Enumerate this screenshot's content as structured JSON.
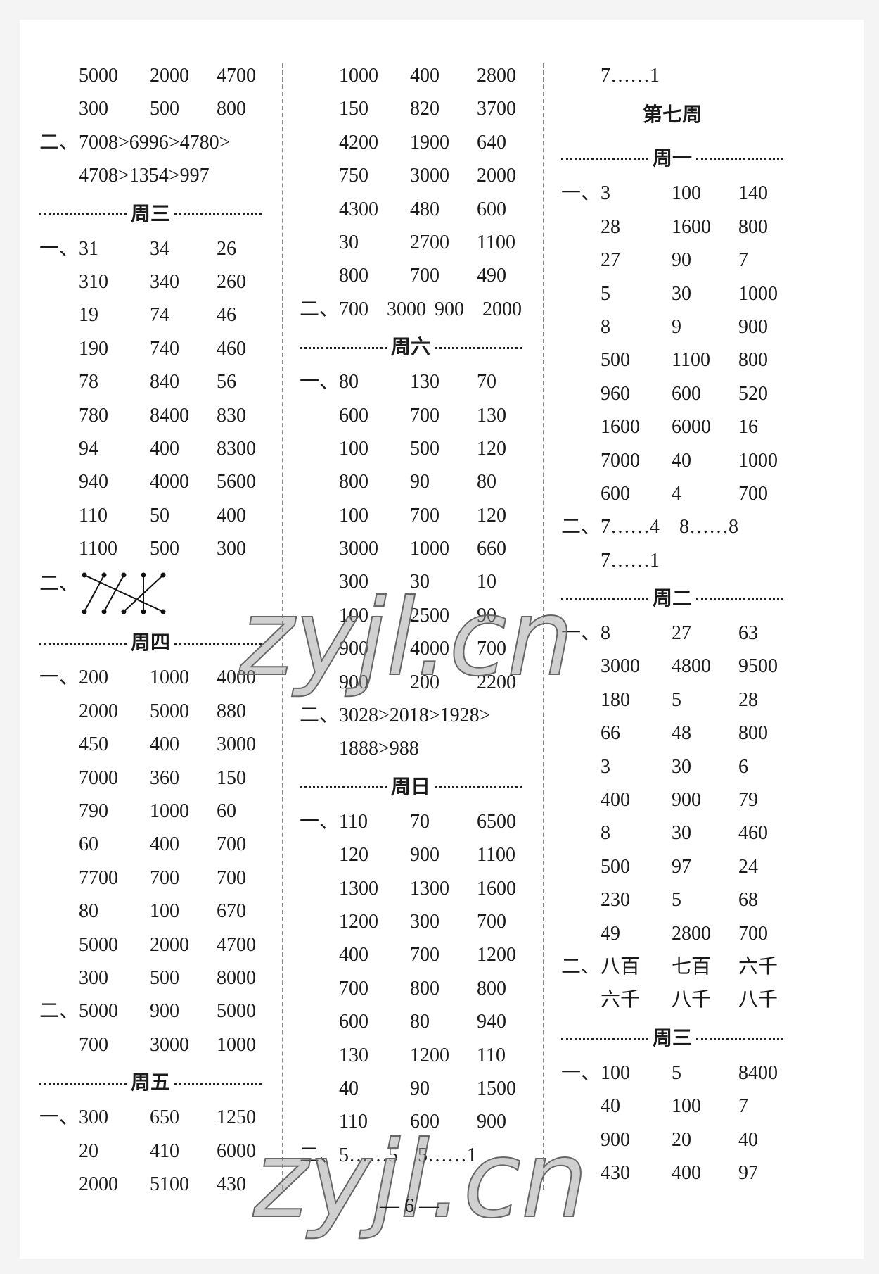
{
  "columns": [
    [
      {
        "type": "row",
        "prefix": "",
        "values": [
          "5000",
          "2000",
          "4700"
        ]
      },
      {
        "type": "row",
        "prefix": "",
        "values": [
          "300",
          "500",
          "800"
        ]
      },
      {
        "type": "text",
        "prefix": "二、",
        "text": "7008>6996>4780>"
      },
      {
        "type": "text",
        "prefix": "",
        "text": "4708>1354>997"
      },
      {
        "type": "heading",
        "label": "周三"
      },
      {
        "type": "row",
        "prefix": "一、",
        "values": [
          "31",
          "34",
          "26"
        ]
      },
      {
        "type": "row",
        "prefix": "",
        "values": [
          "310",
          "340",
          "260"
        ]
      },
      {
        "type": "row",
        "prefix": "",
        "values": [
          "19",
          "74",
          "46"
        ]
      },
      {
        "type": "row",
        "prefix": "",
        "values": [
          "190",
          "740",
          "460"
        ]
      },
      {
        "type": "row",
        "prefix": "",
        "values": [
          "78",
          "840",
          "56"
        ]
      },
      {
        "type": "row",
        "prefix": "",
        "values": [
          "780",
          "8400",
          "830"
        ]
      },
      {
        "type": "row",
        "prefix": "",
        "values": [
          "94",
          "400",
          "8300"
        ]
      },
      {
        "type": "row",
        "prefix": "",
        "values": [
          "940",
          "4000",
          "5600"
        ]
      },
      {
        "type": "row",
        "prefix": "",
        "values": [
          "110",
          "50",
          "400"
        ]
      },
      {
        "type": "row",
        "prefix": "",
        "values": [
          "1100",
          "500",
          "300"
        ]
      },
      {
        "type": "matching",
        "prefix": "二、",
        "pairs": [
          [
            1,
            5
          ],
          [
            2,
            1
          ],
          [
            3,
            2
          ],
          [
            4,
            4
          ],
          [
            5,
            3
          ]
        ]
      },
      {
        "type": "heading",
        "label": "周四"
      },
      {
        "type": "row",
        "prefix": "一、",
        "values": [
          "200",
          "1000",
          "4000"
        ]
      },
      {
        "type": "row",
        "prefix": "",
        "values": [
          "2000",
          "5000",
          "880"
        ]
      },
      {
        "type": "row",
        "prefix": "",
        "values": [
          "450",
          "400",
          "3000"
        ]
      },
      {
        "type": "row",
        "prefix": "",
        "values": [
          "7000",
          "360",
          "150"
        ]
      },
      {
        "type": "row",
        "prefix": "",
        "values": [
          "790",
          "1000",
          "60"
        ]
      },
      {
        "type": "row",
        "prefix": "",
        "values": [
          "60",
          "400",
          "700"
        ]
      },
      {
        "type": "row",
        "prefix": "",
        "values": [
          "7700",
          "700",
          "700"
        ]
      },
      {
        "type": "row",
        "prefix": "",
        "values": [
          "80",
          "100",
          "670"
        ]
      },
      {
        "type": "row",
        "prefix": "",
        "values": [
          "5000",
          "2000",
          "4700"
        ]
      },
      {
        "type": "row",
        "prefix": "",
        "values": [
          "300",
          "500",
          "8000"
        ]
      },
      {
        "type": "row",
        "prefix": "二、",
        "values": [
          "5000",
          "900",
          "5000"
        ]
      },
      {
        "type": "row",
        "prefix": "",
        "values": [
          "700",
          "3000",
          "1000"
        ]
      },
      {
        "type": "heading",
        "label": "周五"
      },
      {
        "type": "row",
        "prefix": "一、",
        "values": [
          "300",
          "650",
          "1250"
        ]
      },
      {
        "type": "row",
        "prefix": "",
        "values": [
          "20",
          "410",
          "6000"
        ]
      },
      {
        "type": "row",
        "prefix": "",
        "values": [
          "2000",
          "5100",
          "430"
        ]
      }
    ],
    [
      {
        "type": "row",
        "prefix": "",
        "values": [
          "1000",
          "400",
          "2800"
        ]
      },
      {
        "type": "row",
        "prefix": "",
        "values": [
          "150",
          "820",
          "3700"
        ]
      },
      {
        "type": "row",
        "prefix": "",
        "values": [
          "4200",
          "1900",
          "640"
        ]
      },
      {
        "type": "row",
        "prefix": "",
        "values": [
          "750",
          "3000",
          "2000"
        ]
      },
      {
        "type": "row",
        "prefix": "",
        "values": [
          "4300",
          "480",
          "600"
        ]
      },
      {
        "type": "row",
        "prefix": "",
        "values": [
          "30",
          "2700",
          "1100"
        ]
      },
      {
        "type": "row",
        "prefix": "",
        "values": [
          "800",
          "700",
          "490"
        ]
      },
      {
        "type": "row",
        "prefix": "二、",
        "values": [
          "700",
          "3000",
          "900",
          "2000"
        ]
      },
      {
        "type": "heading",
        "label": "周六"
      },
      {
        "type": "row",
        "prefix": "一、",
        "values": [
          "80",
          "130",
          "70"
        ]
      },
      {
        "type": "row",
        "prefix": "",
        "values": [
          "600",
          "700",
          "130"
        ]
      },
      {
        "type": "row",
        "prefix": "",
        "values": [
          "100",
          "500",
          "120"
        ]
      },
      {
        "type": "row",
        "prefix": "",
        "values": [
          "800",
          "90",
          "80"
        ]
      },
      {
        "type": "row",
        "prefix": "",
        "values": [
          "100",
          "700",
          "120"
        ]
      },
      {
        "type": "row",
        "prefix": "",
        "values": [
          "3000",
          "1000",
          "660"
        ]
      },
      {
        "type": "row",
        "prefix": "",
        "values": [
          "300",
          "30",
          "10"
        ]
      },
      {
        "type": "row",
        "prefix": "",
        "values": [
          "100",
          "2500",
          "90"
        ]
      },
      {
        "type": "row",
        "prefix": "",
        "values": [
          "900",
          "4000",
          "700"
        ]
      },
      {
        "type": "row",
        "prefix": "",
        "values": [
          "900",
          "200",
          "2200"
        ]
      },
      {
        "type": "text",
        "prefix": "二、",
        "text": "3028>2018>1928>"
      },
      {
        "type": "text",
        "prefix": "",
        "text": "1888>988"
      },
      {
        "type": "heading",
        "label": "周日"
      },
      {
        "type": "row",
        "prefix": "一、",
        "values": [
          "110",
          "70",
          "6500"
        ]
      },
      {
        "type": "row",
        "prefix": "",
        "values": [
          "120",
          "900",
          "1100"
        ]
      },
      {
        "type": "row",
        "prefix": "",
        "values": [
          "1300",
          "1300",
          "1600"
        ]
      },
      {
        "type": "row",
        "prefix": "",
        "values": [
          "1200",
          "300",
          "700"
        ]
      },
      {
        "type": "row",
        "prefix": "",
        "values": [
          "400",
          "700",
          "1200"
        ]
      },
      {
        "type": "row",
        "prefix": "",
        "values": [
          "700",
          "800",
          "800"
        ]
      },
      {
        "type": "row",
        "prefix": "",
        "values": [
          "600",
          "80",
          "940"
        ]
      },
      {
        "type": "row",
        "prefix": "",
        "values": [
          "130",
          "1200",
          "110"
        ]
      },
      {
        "type": "row",
        "prefix": "",
        "values": [
          "40",
          "90",
          "1500"
        ]
      },
      {
        "type": "row",
        "prefix": "",
        "values": [
          "110",
          "600",
          "900"
        ]
      },
      {
        "type": "text",
        "prefix": "二、",
        "text": "5……5　5……1"
      }
    ],
    [
      {
        "type": "text",
        "prefix": "",
        "text": "7……1"
      },
      {
        "type": "title",
        "label": "第七周"
      },
      {
        "type": "heading",
        "label": "周一"
      },
      {
        "type": "row",
        "prefix": "一、",
        "values": [
          "3",
          "100",
          "140"
        ]
      },
      {
        "type": "row",
        "prefix": "",
        "values": [
          "28",
          "1600",
          "800"
        ]
      },
      {
        "type": "row",
        "prefix": "",
        "values": [
          "27",
          "90",
          "7"
        ]
      },
      {
        "type": "row",
        "prefix": "",
        "values": [
          "5",
          "30",
          "1000"
        ]
      },
      {
        "type": "row",
        "prefix": "",
        "values": [
          "8",
          "9",
          "900"
        ]
      },
      {
        "type": "row",
        "prefix": "",
        "values": [
          "500",
          "1100",
          "800"
        ]
      },
      {
        "type": "row",
        "prefix": "",
        "values": [
          "960",
          "600",
          "520"
        ]
      },
      {
        "type": "row",
        "prefix": "",
        "values": [
          "1600",
          "6000",
          "16"
        ]
      },
      {
        "type": "row",
        "prefix": "",
        "values": [
          "7000",
          "40",
          "1000"
        ]
      },
      {
        "type": "row",
        "prefix": "",
        "values": [
          "600",
          "4",
          "700"
        ]
      },
      {
        "type": "text",
        "prefix": "二、",
        "text": "7……4　8……8"
      },
      {
        "type": "text",
        "prefix": "",
        "text": "7……1"
      },
      {
        "type": "heading",
        "label": "周二"
      },
      {
        "type": "row",
        "prefix": "一、",
        "values": [
          "8",
          "27",
          "63"
        ]
      },
      {
        "type": "row",
        "prefix": "",
        "values": [
          "3000",
          "4800",
          "9500"
        ]
      },
      {
        "type": "row",
        "prefix": "",
        "values": [
          "180",
          "5",
          "28"
        ]
      },
      {
        "type": "row",
        "prefix": "",
        "values": [
          "66",
          "48",
          "800"
        ]
      },
      {
        "type": "row",
        "prefix": "",
        "values": [
          "3",
          "30",
          "6"
        ]
      },
      {
        "type": "row",
        "prefix": "",
        "values": [
          "400",
          "900",
          "79"
        ]
      },
      {
        "type": "row",
        "prefix": "",
        "values": [
          "8",
          "30",
          "460"
        ]
      },
      {
        "type": "row",
        "prefix": "",
        "values": [
          "500",
          "97",
          "24"
        ]
      },
      {
        "type": "row",
        "prefix": "",
        "values": [
          "230",
          "5",
          "68"
        ]
      },
      {
        "type": "row",
        "prefix": "",
        "values": [
          "49",
          "2800",
          "700"
        ]
      },
      {
        "type": "row",
        "prefix": "二、",
        "values": [
          "八百",
          "七百",
          "六千"
        ]
      },
      {
        "type": "row",
        "prefix": "",
        "values": [
          "六千",
          "八千",
          "八千"
        ]
      },
      {
        "type": "heading",
        "label": "周三"
      },
      {
        "type": "row",
        "prefix": "一、",
        "values": [
          "100",
          "5",
          "8400"
        ]
      },
      {
        "type": "row",
        "prefix": "",
        "values": [
          "40",
          "100",
          "7"
        ]
      },
      {
        "type": "row",
        "prefix": "",
        "values": [
          "900",
          "20",
          "40"
        ]
      },
      {
        "type": "row",
        "prefix": "",
        "values": [
          "430",
          "400",
          "97"
        ]
      }
    ]
  ],
  "page_number": "— 6 —",
  "watermark": "zyjl.cn"
}
